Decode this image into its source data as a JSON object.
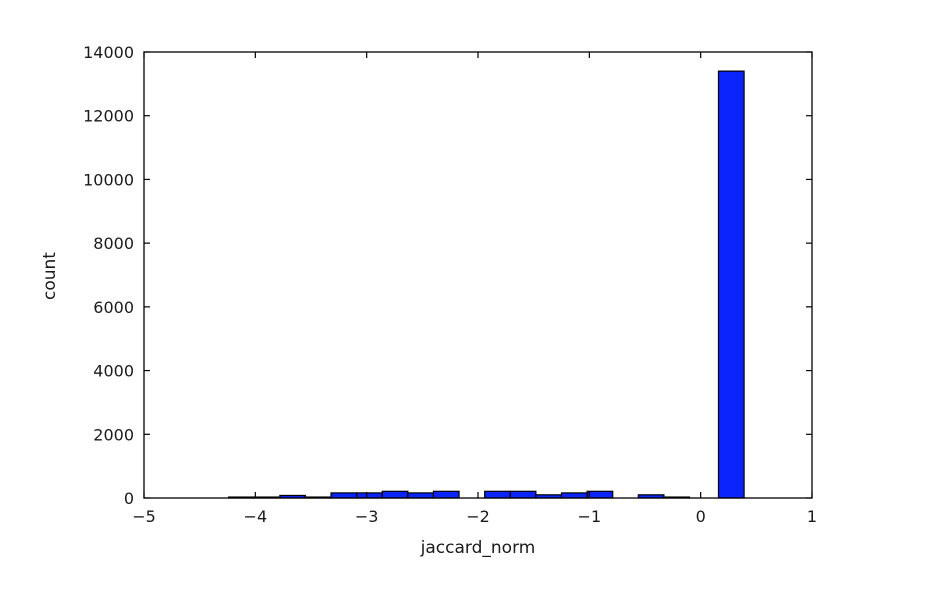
{
  "chart_data": {
    "type": "bar",
    "title": "",
    "xlabel": "jaccard_norm",
    "ylabel": "count",
    "xlim": [
      -5,
      1
    ],
    "ylim": [
      0,
      14000
    ],
    "xticks": [
      -5,
      -4,
      -3,
      -2,
      -1,
      0,
      1
    ],
    "xtick_labels": [
      "−5",
      "−4",
      "−3",
      "−2",
      "−1",
      "0",
      "1"
    ],
    "yticks": [
      0,
      2000,
      4000,
      6000,
      8000,
      10000,
      12000,
      14000
    ],
    "ytick_labels": [
      "0",
      "2000",
      "4000",
      "6000",
      "8000",
      "10000",
      "12000",
      "14000"
    ],
    "grid": false,
    "bar_color": "#0b24fb",
    "bins": [
      {
        "x0": -4.24,
        "x1": -4.01,
        "count": 30
      },
      {
        "x0": -4.01,
        "x1": -3.78,
        "count": 30
      },
      {
        "x0": -3.78,
        "x1": -3.55,
        "count": 80
      },
      {
        "x0": -3.55,
        "x1": -3.32,
        "count": 30
      },
      {
        "x0": -3.32,
        "x1": -3.09,
        "count": 160
      },
      {
        "x0": -3.09,
        "x1": -2.86,
        "count": 160
      },
      {
        "x0": -2.86,
        "x1": -2.63,
        "count": 210
      },
      {
        "x0": -2.63,
        "x1": -2.4,
        "count": 160
      },
      {
        "x0": -2.4,
        "x1": -2.17,
        "count": 210
      },
      {
        "x0": -2.17,
        "x1": -1.94,
        "count": 0
      },
      {
        "x0": -1.94,
        "x1": -1.71,
        "count": 210
      },
      {
        "x0": -1.71,
        "x1": -1.48,
        "count": 210
      },
      {
        "x0": -1.48,
        "x1": -1.25,
        "count": 100
      },
      {
        "x0": -1.25,
        "x1": -1.02,
        "count": 160
      },
      {
        "x0": -1.02,
        "x1": -0.79,
        "count": 210
      },
      {
        "x0": -0.79,
        "x1": -0.56,
        "count": 0
      },
      {
        "x0": -0.56,
        "x1": -0.33,
        "count": 100
      },
      {
        "x0": -0.33,
        "x1": -0.1,
        "count": 30
      },
      {
        "x0": -0.1,
        "x1": 0.16,
        "count": 0
      },
      {
        "x0": 0.16,
        "x1": 0.39,
        "count": 13400
      }
    ]
  }
}
